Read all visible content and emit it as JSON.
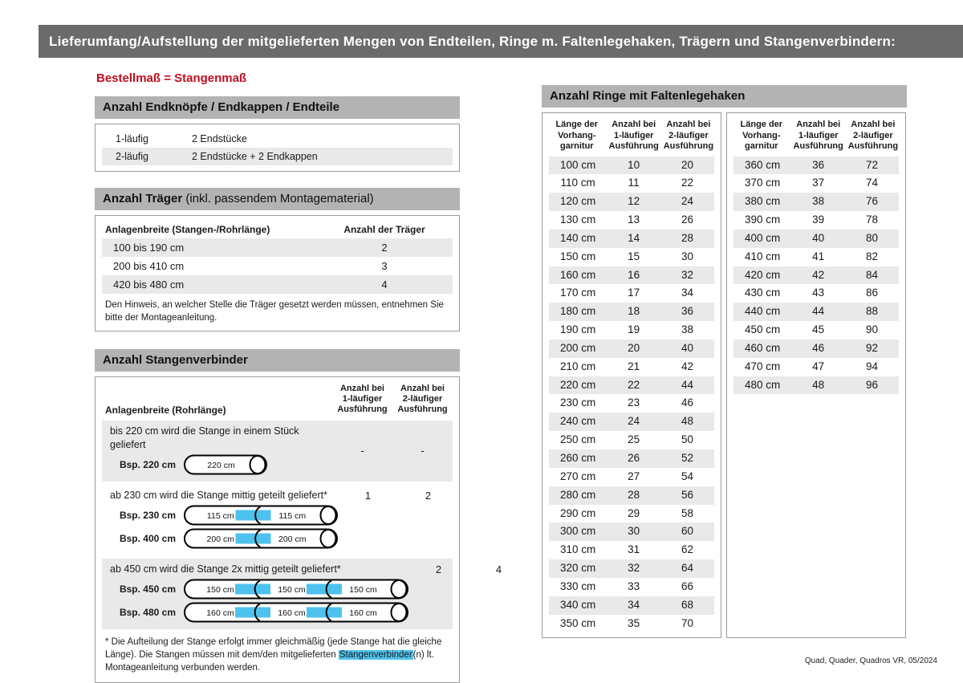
{
  "banner": {
    "title": "Lieferumfang/Aufstellung der mitgelieferten Mengen von Endteilen, Ringe m. Faltenlegehaken, Trägern und Stangenverbindern:"
  },
  "subtitle": "Bestellmaß = Stangenmaß",
  "colors": {
    "accent_red": "#c00e1f",
    "connector_blue": "#4ec2ee",
    "banner_gray": "#6b6b6b",
    "header_bar_gray": "#b3b3b3",
    "row_band_gray": "#e9e9e9"
  },
  "end_pieces": {
    "header": "Anzahl Endknöpfe / Endkappen / Endteile",
    "rows": [
      {
        "label": "1-läufig",
        "value": "2 Endstücke"
      },
      {
        "label": "2-läufig",
        "value": "2 Endstücke + 2 Endkappen"
      }
    ]
  },
  "traeger": {
    "header_bold": "Anzahl Träger",
    "header_rest": " (inkl. passendem Montagematerial)",
    "col1": "Anlagenbreite (Stangen-/Rohrlänge)",
    "col2": "Anzahl der Träger",
    "rows": [
      {
        "range": "100 bis 190 cm",
        "count": "2"
      },
      {
        "range": "200 bis 410 cm",
        "count": "3"
      },
      {
        "range": "420 bis 480 cm",
        "count": "4"
      }
    ],
    "note": "Den Hinweis, an welcher Stelle die Träger gesetzt werden müssen, entnehmen Sie bitte der Montageanleitung."
  },
  "verbinder": {
    "header": "Anzahl Stangenverbinder",
    "col1": "Anlagenbreite (Rohrlänge)",
    "col2": "Anzahl bei\n1-läufiger\nAusführung",
    "col3": "Anzahl bei\n2-läufiger\nAusführung",
    "groups": [
      {
        "text": "bis 220 cm wird die Stange in einem Stück geliefert",
        "v1": "-",
        "v2": "-",
        "rods": [
          {
            "label": "Bsp. 220 cm",
            "segments": [
              "220 cm"
            ]
          }
        ]
      },
      {
        "text": "ab 230 cm wird die Stange mittig geteilt geliefert*",
        "v1": "1",
        "v2": "2",
        "rods": [
          {
            "label": "Bsp. 230 cm",
            "segments": [
              "115 cm",
              "115 cm"
            ]
          },
          {
            "label": "Bsp. 400 cm",
            "segments": [
              "200 cm",
              "200 cm"
            ]
          }
        ]
      },
      {
        "text": "ab 450 cm wird die Stange 2x mittig geteilt geliefert*",
        "v1": "2",
        "v2": "4",
        "rods": [
          {
            "label": "Bsp. 450 cm",
            "segments": [
              "150 cm",
              "150 cm",
              "150 cm"
            ]
          },
          {
            "label": "Bsp. 480 cm",
            "segments": [
              "160 cm",
              "160 cm",
              "160 cm"
            ]
          }
        ]
      }
    ],
    "footnote_before": "* Die Aufteilung der Stange erfolgt immer gleichmäßig (jede Stange hat die gleiche Länge). Die Stangen müssen mit dem/den mitgelieferten ",
    "footnote_highlight": "Stangenverbinder",
    "footnote_after": "(n) lt. Montageanleitung verbunden werden."
  },
  "rings": {
    "header": "Anzahl Ringe mit Faltenlegehaken",
    "col_headers": [
      "Länge der\nVorhang-\ngarnitur",
      "Anzahl bei\n1-läufiger\nAusführung",
      "Anzahl bei\n2-läufiger\nAusführung"
    ],
    "left_rows": [
      [
        "100 cm",
        "10",
        "20"
      ],
      [
        "110 cm",
        "11",
        "22"
      ],
      [
        "120 cm",
        "12",
        "24"
      ],
      [
        "130 cm",
        "13",
        "26"
      ],
      [
        "140 cm",
        "14",
        "28"
      ],
      [
        "150 cm",
        "15",
        "30"
      ],
      [
        "160 cm",
        "16",
        "32"
      ],
      [
        "170 cm",
        "17",
        "34"
      ],
      [
        "180 cm",
        "18",
        "36"
      ],
      [
        "190 cm",
        "19",
        "38"
      ],
      [
        "200 cm",
        "20",
        "40"
      ],
      [
        "210 cm",
        "21",
        "42"
      ],
      [
        "220 cm",
        "22",
        "44"
      ],
      [
        "230 cm",
        "23",
        "46"
      ],
      [
        "240 cm",
        "24",
        "48"
      ],
      [
        "250 cm",
        "25",
        "50"
      ],
      [
        "260 cm",
        "26",
        "52"
      ],
      [
        "270 cm",
        "27",
        "54"
      ],
      [
        "280 cm",
        "28",
        "56"
      ],
      [
        "290 cm",
        "29",
        "58"
      ],
      [
        "300 cm",
        "30",
        "60"
      ],
      [
        "310 cm",
        "31",
        "62"
      ],
      [
        "320 cm",
        "32",
        "64"
      ],
      [
        "330 cm",
        "33",
        "66"
      ],
      [
        "340 cm",
        "34",
        "68"
      ],
      [
        "350 cm",
        "35",
        "70"
      ]
    ],
    "right_rows": [
      [
        "360 cm",
        "36",
        "72"
      ],
      [
        "370 cm",
        "37",
        "74"
      ],
      [
        "380 cm",
        "38",
        "76"
      ],
      [
        "390 cm",
        "39",
        "78"
      ],
      [
        "400 cm",
        "40",
        "80"
      ],
      [
        "410 cm",
        "41",
        "82"
      ],
      [
        "420 cm",
        "42",
        "84"
      ],
      [
        "430 cm",
        "43",
        "86"
      ],
      [
        "440 cm",
        "44",
        "88"
      ],
      [
        "450 cm",
        "45",
        "90"
      ],
      [
        "460 cm",
        "46",
        "92"
      ],
      [
        "470 cm",
        "47",
        "94"
      ],
      [
        "480 cm",
        "48",
        "96"
      ]
    ]
  },
  "footer": "Quad, Quader, Quadros VR, 05/2024"
}
